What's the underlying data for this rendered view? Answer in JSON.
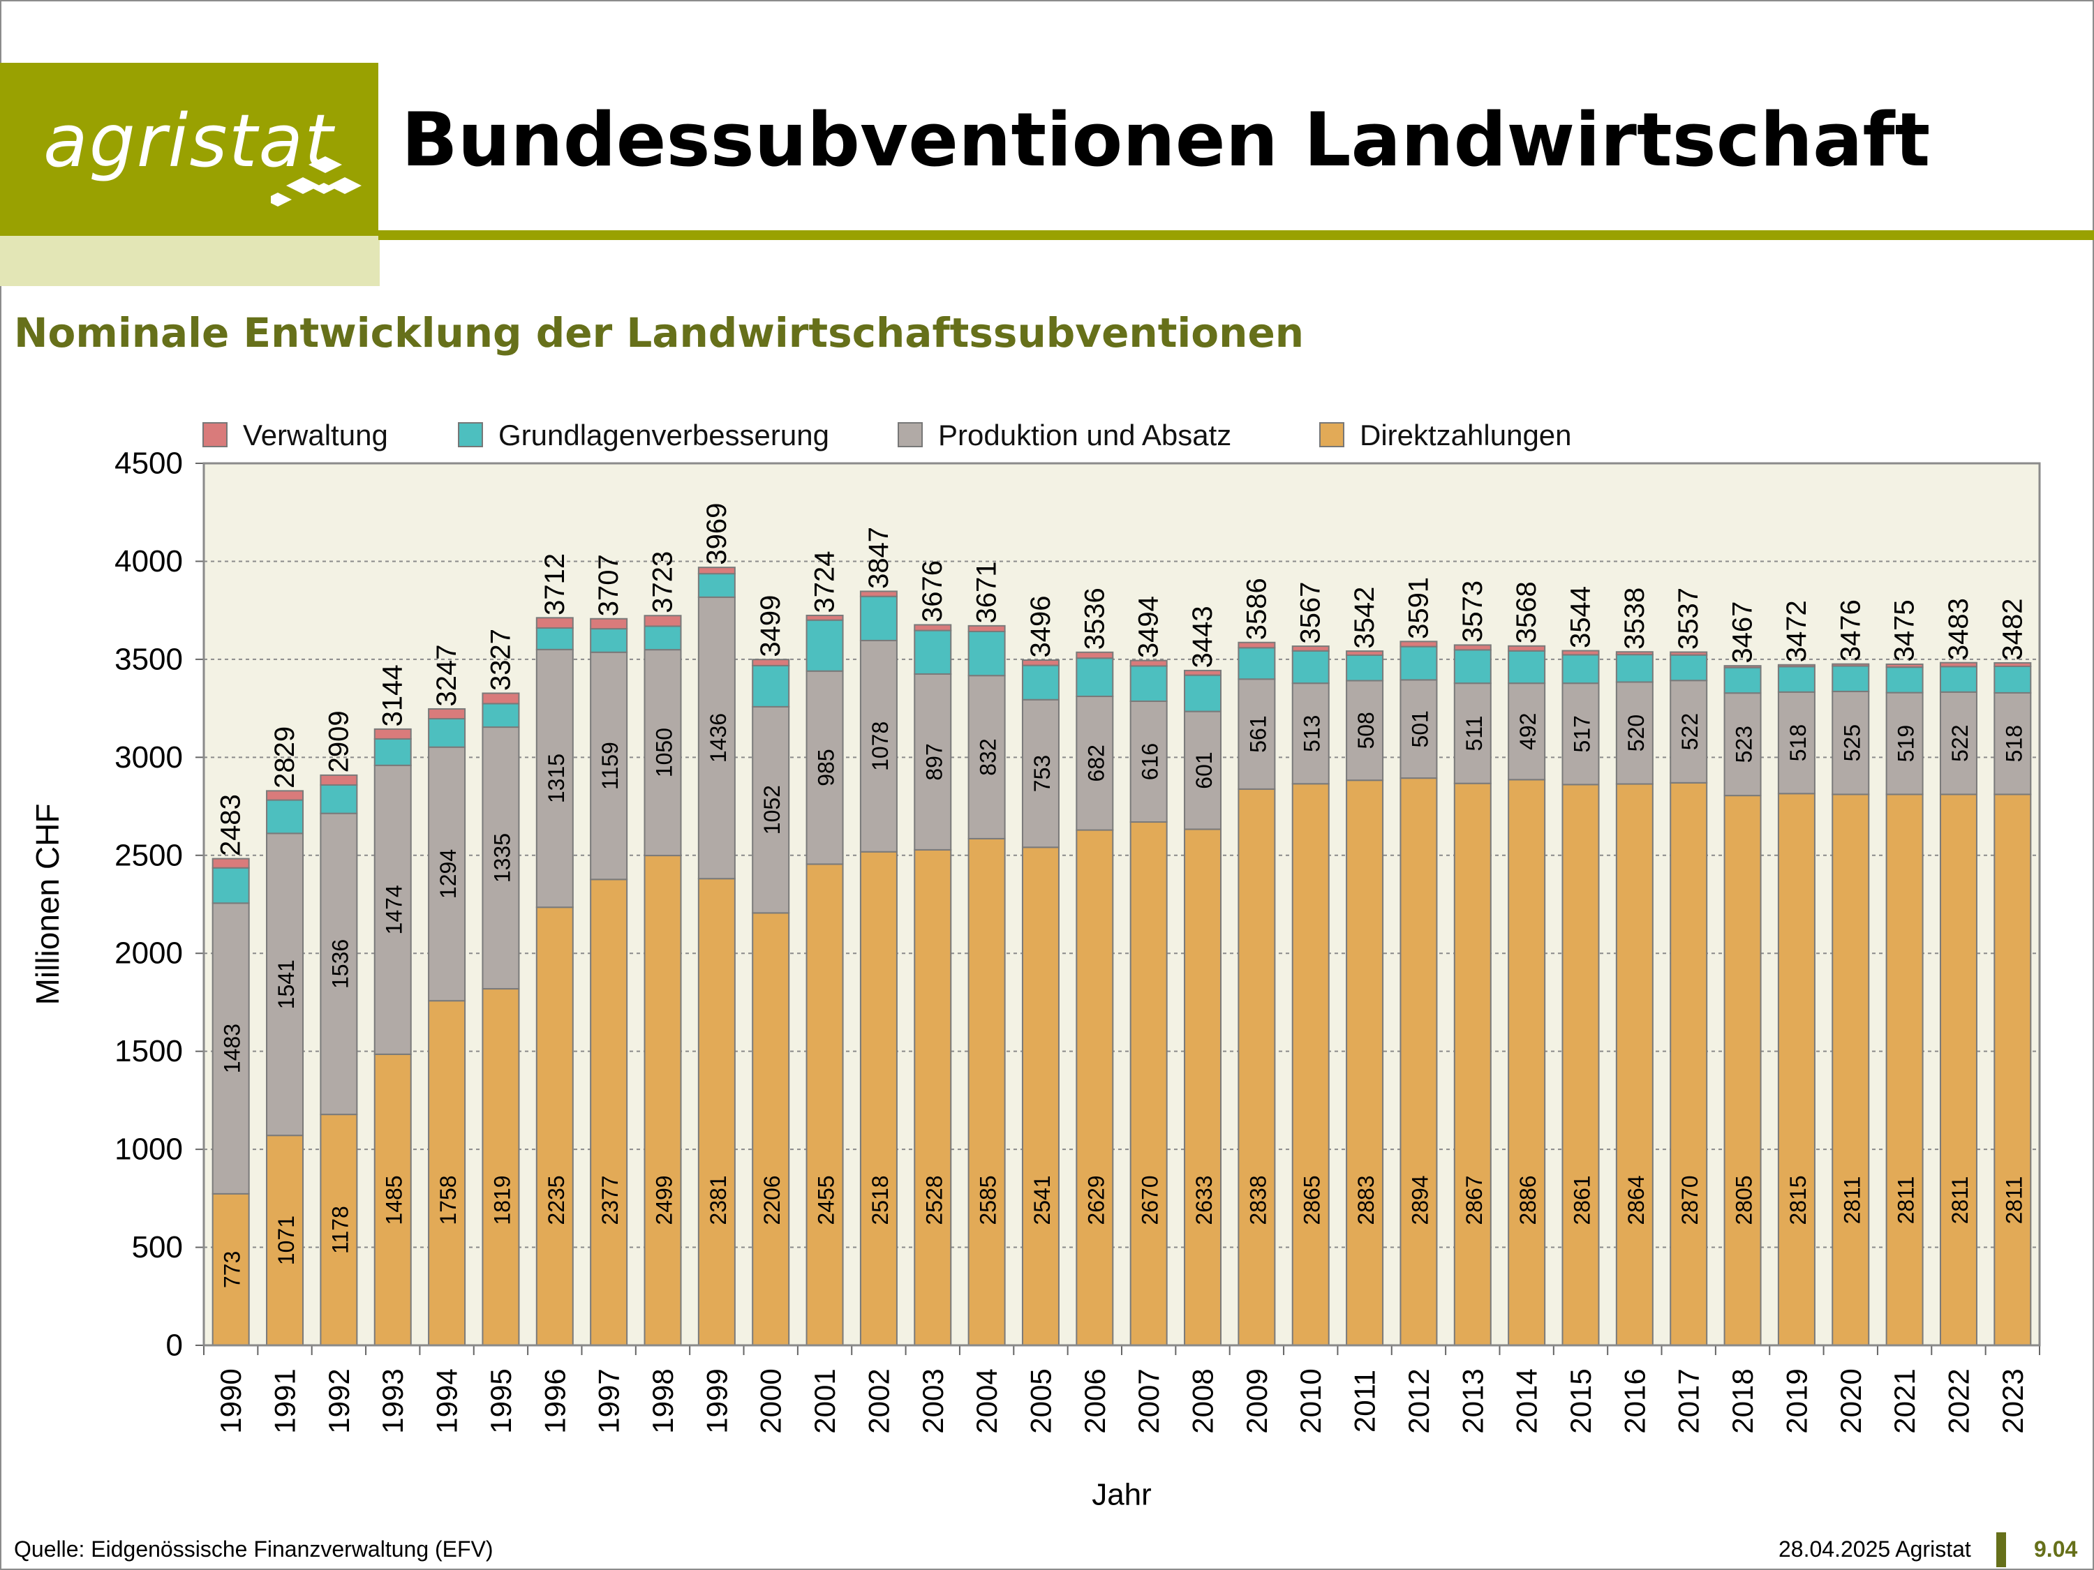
{
  "header": {
    "logo_text": "agristat",
    "title": "Bundessubventionen Landwirtschaft"
  },
  "colors": {
    "brand": "#99a101",
    "brand_light": "#e3e6b6",
    "brand_dark": "#66701a",
    "plot_bg": "#f3f2e4"
  },
  "chart_data": {
    "type": "bar",
    "stacked": true,
    "title": "Nominale Entwicklung der Landwirtschaftssubventionen",
    "xlabel": "Jahr",
    "ylabel": "Millionen CHF",
    "ylim": [
      0,
      4500
    ],
    "yticks": [
      0,
      500,
      1000,
      1500,
      2000,
      2500,
      3000,
      3500,
      4000,
      4500
    ],
    "grid": "horizontal dotted",
    "legend_position": "top",
    "categories": [
      "1990",
      "1991",
      "1992",
      "1993",
      "1994",
      "1995",
      "1996",
      "1997",
      "1998",
      "1999",
      "2000",
      "2001",
      "2002",
      "2003",
      "2004",
      "2005",
      "2006",
      "2007",
      "2008",
      "2009",
      "2010",
      "2011",
      "2012",
      "2013",
      "2014",
      "2015",
      "2016",
      "2017",
      "2018",
      "2019",
      "2020",
      "2021",
      "2022",
      "2023"
    ],
    "series": [
      {
        "name": "Direktzahlungen",
        "color": "#e2aa57",
        "values": [
          773,
          1071,
          1178,
          1485,
          1758,
          1819,
          2235,
          2377,
          2499,
          2381,
          2206,
          2455,
          2518,
          2528,
          2585,
          2541,
          2629,
          2670,
          2633,
          2838,
          2865,
          2883,
          2894,
          2867,
          2886,
          2861,
          2864,
          2870,
          2805,
          2815,
          2811,
          2811,
          2811,
          2811
        ]
      },
      {
        "name": "Produktion und Absatz",
        "color": "#b1aaa6",
        "values": [
          1483,
          1541,
          1536,
          1474,
          1294,
          1335,
          1315,
          1159,
          1050,
          1436,
          1052,
          985,
          1078,
          897,
          832,
          753,
          682,
          616,
          601,
          561,
          513,
          508,
          501,
          511,
          492,
          517,
          520,
          522,
          523,
          518,
          525,
          519,
          522,
          518
        ]
      },
      {
        "name": "Grundlagenverbesserung",
        "color": "#4dbfbf",
        "values": [
          180,
          170,
          145,
          135,
          145,
          120,
          110,
          120,
          120,
          120,
          210,
          260,
          225,
          222,
          225,
          175,
          195,
          180,
          185,
          160,
          165,
          130,
          170,
          170,
          165,
          145,
          140,
          130,
          130,
          130,
          130,
          130,
          130,
          135
        ]
      },
      {
        "name": "Verwaltung",
        "color": "#d97b7b",
        "values": [
          47,
          47,
          50,
          50,
          50,
          53,
          52,
          51,
          54,
          32,
          31,
          24,
          26,
          29,
          29,
          27,
          30,
          28,
          24,
          27,
          24,
          21,
          26,
          25,
          25,
          21,
          14,
          15,
          9,
          9,
          10,
          15,
          20,
          18
        ]
      }
    ],
    "totals": [
      2483,
      2829,
      2909,
      3144,
      3247,
      3327,
      3712,
      3707,
      3723,
      3969,
      3499,
      3724,
      3847,
      3676,
      3671,
      3496,
      3536,
      3494,
      3443,
      3586,
      3567,
      3542,
      3591,
      3573,
      3568,
      3544,
      3538,
      3537,
      3467,
      3472,
      3476,
      3475,
      3483,
      3482
    ]
  },
  "footer": {
    "source": "Quelle: Eidgenössische Finanzverwaltung (EFV)",
    "date": "28.04.2025 Agristat",
    "page": "9.04"
  }
}
